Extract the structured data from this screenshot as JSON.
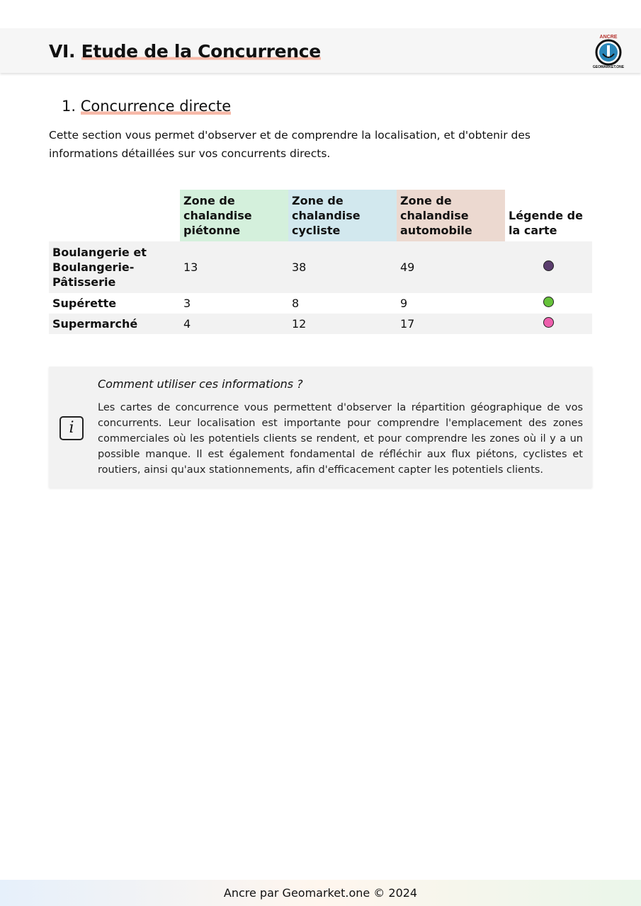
{
  "header": {
    "number": "VI.",
    "title": "Etude de la Concurrence",
    "logo_text": "ANCRE GEOMARKET.ONE"
  },
  "section": {
    "number": "1.",
    "title": "Concurrence directe",
    "intro": "Cette section vous permet d'observer et de comprendre la localisation, et d'obtenir des informations détaillées sur vos concurrents directs."
  },
  "table": {
    "headers": [
      "",
      "Zone de chalandise piétonne",
      "Zone de chalandise cycliste",
      "Zone de chalandise automobile",
      "Légende de la carte"
    ],
    "header_colors": [
      "#ffffff",
      "#d4f0dc",
      "#d2e8ee",
      "#ecd9d0",
      "#ffffff"
    ],
    "rows": [
      {
        "label": "Boulangerie et Boulangerie-Pâtisserie",
        "pieton": "13",
        "cycliste": "38",
        "automobile": "49",
        "color": "#5b3d6e"
      },
      {
        "label": "Supérette",
        "pieton": "3",
        "cycliste": "8",
        "automobile": "9",
        "color": "#66c23a"
      },
      {
        "label": "Supermarché",
        "pieton": "4",
        "cycliste": "12",
        "automobile": "17",
        "color": "#ee5fad"
      }
    ]
  },
  "info": {
    "icon": "info-icon",
    "question": "Comment utiliser ces informations ?",
    "text": "Les cartes de concurrence vous permettent d'observer la répartition géographique de vos concurrents. Leur localisation est importante pour comprendre l'emplacement des zones commerciales où les potentiels clients se rendent, et pour comprendre les zones où il y a un possible manque. Il est également fondamental de réfléchir aux flux piétons, cyclistes et routiers, ainsi qu'aux stationnements, afin d'efficacement capter les potentiels clients."
  },
  "footer": "Ancre par Geomarket.one © 2024"
}
